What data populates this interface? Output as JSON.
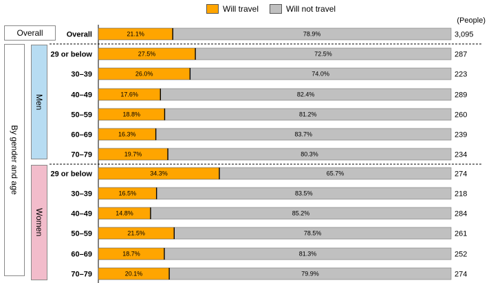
{
  "legend": {
    "will_travel": "Will travel",
    "will_not_travel": "Will not travel"
  },
  "unit_label": "(People)",
  "side_labels": {
    "overall": "Overall",
    "by_gender_age": "By gender and age",
    "men": "Men",
    "women": "Women"
  },
  "colors": {
    "will_travel": "#ffa500",
    "will_not_travel": "#c0c0c0",
    "men": "#b7dcf2",
    "women": "#f2bccb"
  },
  "chart_data": {
    "type": "bar",
    "stacked": true,
    "orientation": "horizontal",
    "categories": [
      "Overall",
      "29 or below",
      "30–39",
      "40–49",
      "50–59",
      "60–69",
      "70–79",
      "29 or below",
      "30–39",
      "40–49",
      "50–59",
      "60–69",
      "70–79"
    ],
    "groups": [
      "Overall",
      "Men",
      "Men",
      "Men",
      "Men",
      "Men",
      "Men",
      "Women",
      "Women",
      "Women",
      "Women",
      "Women",
      "Women"
    ],
    "series": [
      {
        "name": "Will travel",
        "values": [
          21.1,
          27.5,
          26.0,
          17.6,
          18.8,
          16.3,
          19.7,
          34.3,
          16.5,
          14.8,
          21.5,
          18.7,
          20.1
        ]
      },
      {
        "name": "Will not travel",
        "values": [
          78.9,
          72.5,
          74.0,
          82.4,
          81.2,
          83.7,
          80.3,
          65.7,
          83.5,
          85.2,
          78.5,
          81.3,
          79.9
        ]
      }
    ],
    "labels_travel": [
      "21.1%",
      "27.5%",
      "26.0%",
      "17.6%",
      "18.8%",
      "16.3%",
      "19.7%",
      "34.3%",
      "16.5%",
      "14.8%",
      "21.5%",
      "18.7%",
      "20.1%"
    ],
    "labels_not_travel": [
      "78.9%",
      "72.5%",
      "74.0%",
      "82.4%",
      "81.2%",
      "83.7%",
      "80.3%",
      "65.7%",
      "83.5%",
      "85.2%",
      "78.5%",
      "81.3%",
      "79.9%"
    ],
    "counts": [
      "3,095",
      "287",
      "223",
      "289",
      "260",
      "239",
      "234",
      "274",
      "218",
      "284",
      "261",
      "252",
      "274"
    ],
    "xlim": [
      0,
      100
    ],
    "unit": "%"
  }
}
